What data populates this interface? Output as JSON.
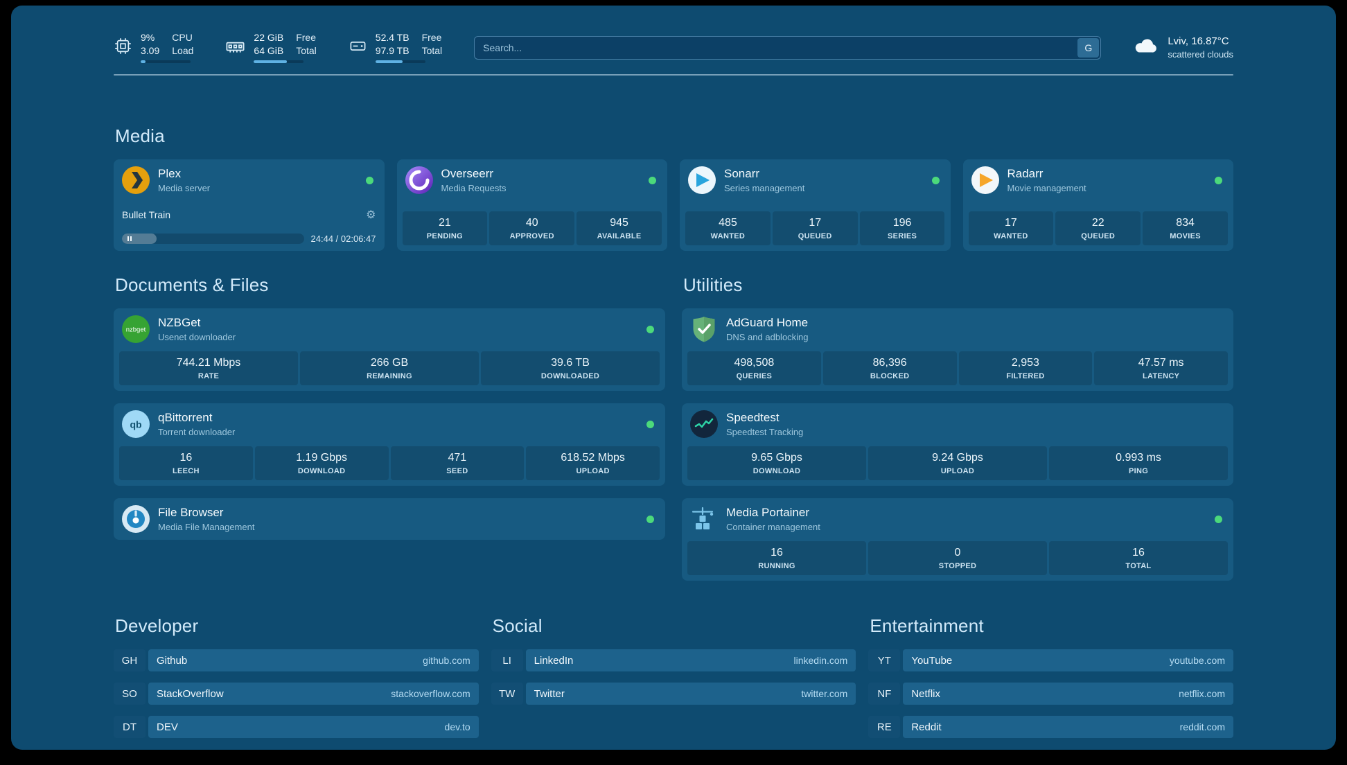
{
  "topbar": {
    "stats": [
      {
        "icon": "cpu-icon",
        "values": [
          "9%",
          "3.09"
        ],
        "labels": [
          "CPU",
          "Load"
        ],
        "progress": 10
      },
      {
        "icon": "ram-icon",
        "values": [
          "22 GiB",
          "64 GiB"
        ],
        "labels": [
          "Free",
          "Total"
        ],
        "progress": 66
      },
      {
        "icon": "disk-icon",
        "values": [
          "52.4 TB",
          "97.9 TB"
        ],
        "labels": [
          "Free",
          "Total"
        ],
        "progress": 54
      }
    ],
    "search": {
      "placeholder": "Search...",
      "button_label": "G"
    },
    "weather": {
      "location": "Lviv, 16.87°C",
      "condition": "scattered clouds"
    }
  },
  "icons": {
    "gear": "⚙"
  },
  "media": {
    "heading": "Media",
    "plex": {
      "name": "Plex",
      "subtitle": "Media server",
      "online": true,
      "now_playing": "Bullet Train",
      "time": "24:44 / 02:06:47",
      "progress": 19
    },
    "overseerr": {
      "name": "Overseerr",
      "subtitle": "Media Requests",
      "online": true,
      "stats": [
        {
          "value": "21",
          "label": "PENDING"
        },
        {
          "value": "40",
          "label": "APPROVED"
        },
        {
          "value": "945",
          "label": "AVAILABLE"
        }
      ]
    },
    "sonarr": {
      "name": "Sonarr",
      "subtitle": "Series management",
      "online": true,
      "stats": [
        {
          "value": "485",
          "label": "WANTED"
        },
        {
          "value": "17",
          "label": "QUEUED"
        },
        {
          "value": "196",
          "label": "SERIES"
        }
      ]
    },
    "radarr": {
      "name": "Radarr",
      "subtitle": "Movie management",
      "online": true,
      "stats": [
        {
          "value": "17",
          "label": "WANTED"
        },
        {
          "value": "22",
          "label": "QUEUED"
        },
        {
          "value": "834",
          "label": "MOVIES"
        }
      ]
    }
  },
  "documents": {
    "heading": "Documents & Files",
    "nzbget": {
      "name": "NZBGet",
      "subtitle": "Usenet downloader",
      "online": true,
      "stats": [
        {
          "value": "744.21 Mbps",
          "label": "RATE"
        },
        {
          "value": "266 GB",
          "label": "REMAINING"
        },
        {
          "value": "39.6 TB",
          "label": "DOWNLOADED"
        }
      ]
    },
    "qbittorrent": {
      "name": "qBittorrent",
      "subtitle": "Torrent downloader",
      "online": true,
      "stats": [
        {
          "value": "16",
          "label": "LEECH"
        },
        {
          "value": "1.19 Gbps",
          "label": "DOWNLOAD"
        },
        {
          "value": "471",
          "label": "SEED"
        },
        {
          "value": "618.52 Mbps",
          "label": "UPLOAD"
        }
      ]
    },
    "filebrowser": {
      "name": "File Browser",
      "subtitle": "Media File Management",
      "online": true
    }
  },
  "utilities": {
    "heading": "Utilities",
    "adguard": {
      "name": "AdGuard Home",
      "subtitle": "DNS and adblocking",
      "stats": [
        {
          "value": "498,508",
          "label": "QUERIES"
        },
        {
          "value": "86,396",
          "label": "BLOCKED"
        },
        {
          "value": "2,953",
          "label": "FILTERED"
        },
        {
          "value": "47.57 ms",
          "label": "LATENCY"
        }
      ]
    },
    "speedtest": {
      "name": "Speedtest",
      "subtitle": "Speedtest Tracking",
      "stats": [
        {
          "value": "9.65 Gbps",
          "label": "DOWNLOAD"
        },
        {
          "value": "9.24 Gbps",
          "label": "UPLOAD"
        },
        {
          "value": "0.993 ms",
          "label": "PING"
        }
      ]
    },
    "portainer": {
      "name": "Media Portainer",
      "subtitle": "Container management",
      "online": true,
      "stats": [
        {
          "value": "16",
          "label": "RUNNING"
        },
        {
          "value": "0",
          "label": "STOPPED"
        },
        {
          "value": "16",
          "label": "TOTAL"
        }
      ]
    }
  },
  "links": {
    "developer": {
      "heading": "Developer",
      "items": [
        {
          "abbr": "GH",
          "name": "Github",
          "url": "github.com"
        },
        {
          "abbr": "SO",
          "name": "StackOverflow",
          "url": "stackoverflow.com"
        },
        {
          "abbr": "DT",
          "name": "DEV",
          "url": "dev.to"
        }
      ]
    },
    "social": {
      "heading": "Social",
      "items": [
        {
          "abbr": "LI",
          "name": "LinkedIn",
          "url": "linkedin.com"
        },
        {
          "abbr": "TW",
          "name": "Twitter",
          "url": "twitter.com"
        }
      ]
    },
    "entertainment": {
      "heading": "Entertainment",
      "items": [
        {
          "abbr": "YT",
          "name": "YouTube",
          "url": "youtube.com"
        },
        {
          "abbr": "NF",
          "name": "Netflix",
          "url": "netflix.com"
        },
        {
          "abbr": "RE",
          "name": "Reddit",
          "url": "reddit.com"
        }
      ]
    }
  },
  "colors": {
    "background": "#0e4b70",
    "card": "#175a81",
    "accent": "#5fb2e4",
    "online_dot": "#4cd97b"
  }
}
